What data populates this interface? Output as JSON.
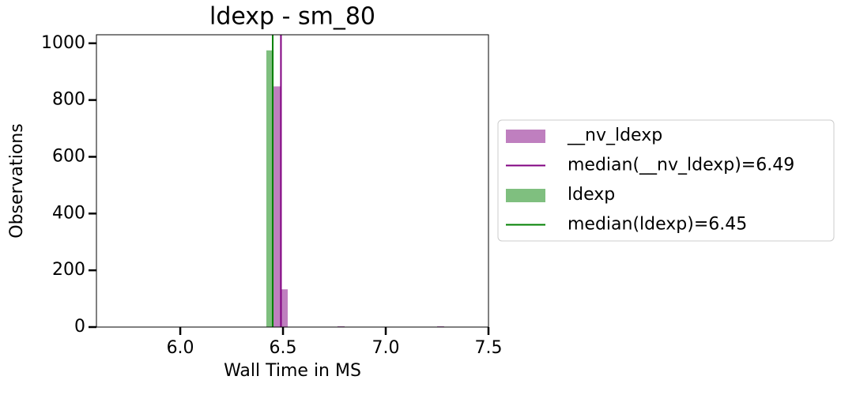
{
  "chart_data": {
    "type": "histogram",
    "title": "ldexp - sm_80",
    "xlabel": "Wall Time in MS",
    "ylabel": "Observations",
    "xlim": [
      5.592,
      7.5
    ],
    "xticks": [
      {
        "value": 6.0,
        "label": "6.0"
      },
      6.5,
      {
        "value": 7.0,
        "label": "7.0"
      },
      7.5
    ],
    "ylim": [
      0,
      1030
    ],
    "yticks": [
      0,
      200,
      400,
      600,
      800,
      1000
    ],
    "series": [
      {
        "name": "__nv_ldexp",
        "color": "#800080",
        "bins": [
          6.454,
          6.489,
          6.523,
          6.558,
          6.592,
          6.627,
          6.662,
          6.696,
          6.731,
          6.765,
          6.8,
          6.835,
          6.869,
          6.904,
          6.938,
          6.973,
          7.008,
          7.042,
          7.077,
          7.111,
          7.146,
          7.181,
          7.215,
          7.25,
          7.284
        ],
        "counts": [
          848,
          133,
          0,
          0,
          0,
          0,
          0,
          0,
          0,
          3,
          0,
          0,
          0,
          0,
          0,
          0,
          0,
          0,
          0,
          0,
          0,
          0,
          0,
          3
        ],
        "median": {
          "name": "median(__nv_ldexp)=6.49",
          "value": 6.49
        }
      },
      {
        "name": "ldexp",
        "color": "#008000",
        "bins": [
          6.419,
          6.454
        ],
        "counts": [
          975
        ],
        "median": {
          "name": "median(ldexp)=6.45",
          "value": 6.45
        }
      }
    ],
    "legend": "right"
  }
}
